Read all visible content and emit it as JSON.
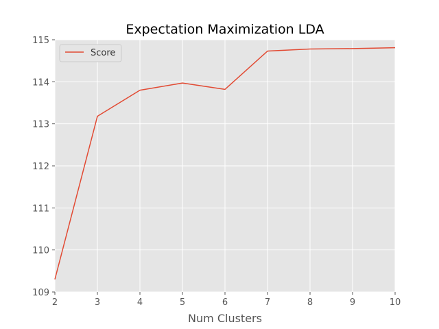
{
  "chart_data": {
    "type": "line",
    "title": "Expectation Maximization LDA",
    "xlabel": "Num Clusters",
    "ylabel": "",
    "xlim": [
      2,
      10
    ],
    "ylim": [
      109,
      115
    ],
    "xticks": [
      2,
      3,
      4,
      5,
      6,
      7,
      8,
      9,
      10
    ],
    "yticks": [
      109,
      110,
      111,
      112,
      113,
      114,
      115
    ],
    "grid": true,
    "legend_position": "top-left",
    "series": [
      {
        "name": "Score",
        "color": "#E24A33",
        "x": [
          2,
          3,
          4,
          5,
          6,
          7,
          8,
          9,
          10
        ],
        "y": [
          109.3,
          113.18,
          113.8,
          113.97,
          113.82,
          114.73,
          114.78,
          114.79,
          114.81
        ]
      }
    ]
  }
}
